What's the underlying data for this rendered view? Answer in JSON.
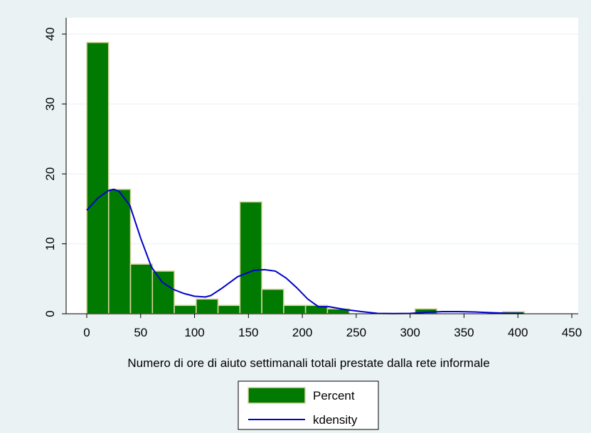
{
  "chart_data": {
    "type": "bar",
    "title": "",
    "xlabel": "Numero di ore di aiuto settimanali totali prestate dalla rete informale",
    "ylabel": "",
    "xlim": [
      -20,
      460
    ],
    "ylim": [
      0,
      40
    ],
    "x_ticks": [
      "0",
      "50",
      "100",
      "150",
      "200",
      "250",
      "300",
      "350",
      "400",
      "450"
    ],
    "y_ticks": [
      "0",
      "10",
      "20",
      "30",
      "40"
    ],
    "grid": true,
    "legend_position": "bottom",
    "histogram": {
      "name": "Percent",
      "color": "#007a00",
      "edge_color": "#d8d6a0",
      "bin_width": 20.3,
      "bins": [
        {
          "x0": 0,
          "value": 38.8
        },
        {
          "x0": 20.3,
          "value": 17.8
        },
        {
          "x0": 40.6,
          "value": 7.1
        },
        {
          "x0": 60.9,
          "value": 6.1
        },
        {
          "x0": 81.2,
          "value": 1.2
        },
        {
          "x0": 101.5,
          "value": 2.1
        },
        {
          "x0": 121.8,
          "value": 1.2
        },
        {
          "x0": 142.1,
          "value": 16.0
        },
        {
          "x0": 162.4,
          "value": 3.5
        },
        {
          "x0": 182.7,
          "value": 1.2
        },
        {
          "x0": 203.0,
          "value": 1.2
        },
        {
          "x0": 223.3,
          "value": 0.7
        },
        {
          "x0": 243.6,
          "value": 0.0
        },
        {
          "x0": 263.9,
          "value": 0.0
        },
        {
          "x0": 284.2,
          "value": 0.0
        },
        {
          "x0": 304.5,
          "value": 0.7
        },
        {
          "x0": 324.8,
          "value": 0.0
        },
        {
          "x0": 345.1,
          "value": 0.0
        },
        {
          "x0": 365.4,
          "value": 0.0
        },
        {
          "x0": 385.7,
          "value": 0.3
        }
      ]
    },
    "kdensity": {
      "name": "kdensity",
      "color": "#0000cc",
      "x": [
        0,
        10,
        20,
        25,
        30,
        40,
        50,
        60,
        70,
        80,
        90,
        100,
        110,
        115,
        125,
        140,
        155,
        165,
        175,
        185,
        195,
        205,
        215,
        225,
        240,
        255,
        270,
        285,
        300,
        315,
        330,
        345,
        360,
        375,
        390,
        405
      ],
      "y": [
        14.8,
        16.5,
        17.6,
        17.8,
        17.5,
        15.5,
        10.8,
        6.7,
        4.5,
        3.5,
        2.9,
        2.5,
        2.4,
        2.6,
        3.6,
        5.3,
        6.2,
        6.3,
        6.1,
        5.1,
        3.7,
        2.1,
        1.0,
        1.0,
        0.6,
        0.3,
        0.05,
        0.02,
        0.05,
        0.2,
        0.3,
        0.3,
        0.25,
        0.15,
        0.07,
        0.05
      ]
    },
    "legend": [
      "Percent",
      "kdensity"
    ]
  }
}
